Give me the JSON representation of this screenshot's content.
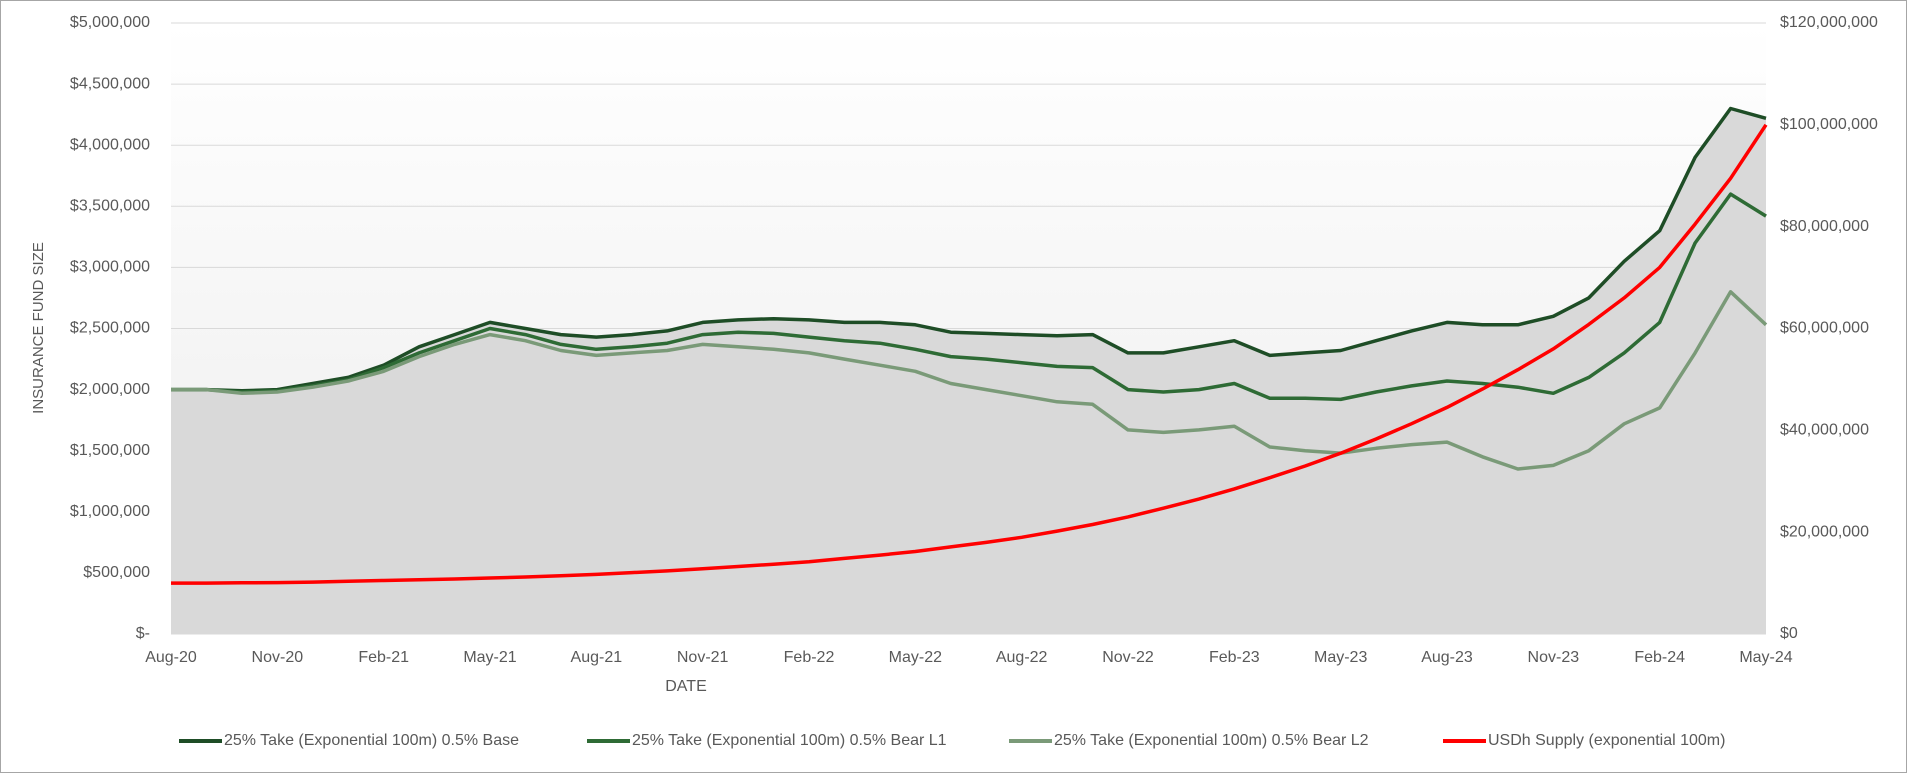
{
  "chart_data": {
    "type": "line",
    "xlabel": "DATE",
    "ylabel": "INSURANCE FUND SIZE",
    "categories": [
      "Aug-20",
      null,
      null,
      "Nov-20",
      null,
      null,
      "Feb-21",
      null,
      null,
      "May-21",
      null,
      null,
      "Aug-21",
      null,
      null,
      "Nov-21",
      null,
      null,
      "Feb-22",
      null,
      null,
      "May-22",
      null,
      null,
      "Aug-22",
      null,
      null,
      "Nov-22",
      null,
      null,
      "Feb-23",
      null,
      null,
      "May-23",
      null,
      null,
      "Aug-23",
      null,
      null,
      "Nov-23",
      null,
      null,
      "Feb-24",
      null,
      null,
      "May-24"
    ],
    "series": [
      {
        "name": "25% Take (Exponential 100m) 0.5% Base",
        "color": "#1e4d26",
        "area": true,
        "values": [
          2000000,
          2000000,
          1990000,
          2000000,
          2050000,
          2100000,
          2200000,
          2350000,
          2450000,
          2550000,
          2500000,
          2450000,
          2430000,
          2450000,
          2480000,
          2550000,
          2570000,
          2580000,
          2570000,
          2550000,
          2550000,
          2530000,
          2470000,
          2460000,
          2450000,
          2440000,
          2450000,
          2300000,
          2300000,
          2350000,
          2400000,
          2280000,
          2300000,
          2320000,
          2400000,
          2480000,
          2550000,
          2530000,
          2530000,
          2600000,
          2750000,
          3050000,
          3300000,
          3900000,
          4300000,
          4220000
        ]
      },
      {
        "name": "25% Take (Exponential 100m) 0.5% Bear L1",
        "color": "#2e6b35",
        "values": [
          2000000,
          2000000,
          1980000,
          1990000,
          2030000,
          2080000,
          2180000,
          2300000,
          2400000,
          2500000,
          2450000,
          2370000,
          2330000,
          2350000,
          2380000,
          2450000,
          2470000,
          2460000,
          2430000,
          2400000,
          2380000,
          2330000,
          2270000,
          2250000,
          2220000,
          2190000,
          2180000,
          2000000,
          1980000,
          2000000,
          2050000,
          1930000,
          1930000,
          1920000,
          1980000,
          2030000,
          2070000,
          2050000,
          2020000,
          1970000,
          2100000,
          2300000,
          2550000,
          3200000,
          3600000,
          3420000
        ]
      },
      {
        "name": "25% Take (Exponential 100m) 0.5% Bear L2",
        "color": "#7a9a78",
        "values": [
          2000000,
          2000000,
          1970000,
          1980000,
          2020000,
          2070000,
          2150000,
          2270000,
          2370000,
          2450000,
          2400000,
          2320000,
          2280000,
          2300000,
          2320000,
          2370000,
          2350000,
          2330000,
          2300000,
          2250000,
          2200000,
          2150000,
          2050000,
          2000000,
          1950000,
          1900000,
          1880000,
          1670000,
          1650000,
          1670000,
          1700000,
          1530000,
          1500000,
          1480000,
          1520000,
          1550000,
          1570000,
          1450000,
          1350000,
          1380000,
          1500000,
          1720000,
          1850000,
          2300000,
          2800000,
          2530000
        ]
      },
      {
        "name": "USDh Supply (exponential 100m)",
        "color": "#ff0000",
        "axis": "y2",
        "values": [
          10000000,
          10000000,
          10050000,
          10100000,
          10200000,
          10350000,
          10500000,
          10650000,
          10800000,
          11000000,
          11200000,
          11450000,
          11700000,
          12050000,
          12400000,
          12800000,
          13250000,
          13700000,
          14200000,
          14850000,
          15500000,
          16200000,
          17100000,
          18000000,
          19000000,
          20200000,
          21500000,
          23000000,
          24700000,
          26500000,
          28500000,
          30700000,
          33000000,
          35500000,
          38300000,
          41300000,
          44500000,
          48100000,
          51900000,
          56000000,
          60800000,
          66000000,
          72000000,
          80500000,
          89500000,
          100000000
        ]
      }
    ],
    "ylim": [
      0,
      5000000
    ],
    "yticks": [
      {
        "value": 0,
        "label": "$-"
      },
      {
        "value": 500000,
        "label": "$500,000"
      },
      {
        "value": 1000000,
        "label": "$1,000,000"
      },
      {
        "value": 1500000,
        "label": "$1,500,000"
      },
      {
        "value": 2000000,
        "label": "$2,000,000"
      },
      {
        "value": 2500000,
        "label": "$2,500,000"
      },
      {
        "value": 3000000,
        "label": "$3,000,000"
      },
      {
        "value": 3500000,
        "label": "$3,500,000"
      },
      {
        "value": 4000000,
        "label": "$4,000,000"
      },
      {
        "value": 4500000,
        "label": "$4,500,000"
      },
      {
        "value": 5000000,
        "label": "$5,000,000"
      }
    ],
    "y2lim": [
      0,
      120000000
    ],
    "y2ticks": [
      {
        "value": 0,
        "label": "$0"
      },
      {
        "value": 20000000,
        "label": "$20,000,000"
      },
      {
        "value": 40000000,
        "label": "$40,000,000"
      },
      {
        "value": 60000000,
        "label": "$60,000,000"
      },
      {
        "value": 80000000,
        "label": "$80,000,000"
      },
      {
        "value": 100000000,
        "label": "$100,000,000"
      },
      {
        "value": 120000000,
        "label": "$120,000,000"
      }
    ],
    "grid": true,
    "legend": "bottom"
  }
}
